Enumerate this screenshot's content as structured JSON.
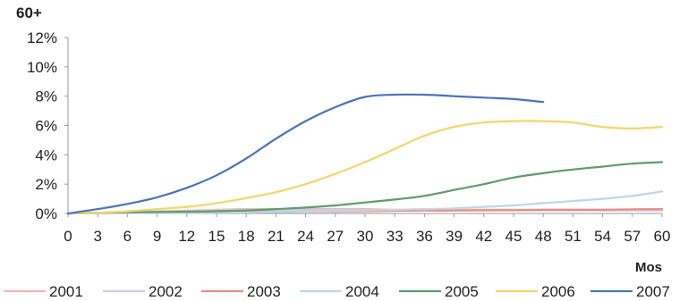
{
  "chart_data": {
    "type": "line",
    "title": "60+",
    "xlabel": "Mos",
    "ylabel": "",
    "xlim": [
      0,
      60
    ],
    "ylim": [
      0,
      12
    ],
    "x_ticks": [
      "0",
      "3",
      "6",
      "9",
      "12",
      "15",
      "18",
      "21",
      "24",
      "27",
      "30",
      "33",
      "36",
      "39",
      "42",
      "45",
      "48",
      "51",
      "54",
      "57",
      "60"
    ],
    "y_ticks": [
      "0%",
      "2%",
      "4%",
      "6%",
      "8%",
      "10%",
      "12%"
    ],
    "grid": false,
    "legend_position": "bottom",
    "x": [
      0,
      3,
      6,
      9,
      12,
      15,
      18,
      21,
      24,
      27,
      30,
      33,
      36,
      39,
      42,
      45,
      48,
      51,
      54,
      57,
      60
    ],
    "series": [
      {
        "name": "2001",
        "color": "#f2b8b0",
        "values": [
          0,
          0.05,
          0.1,
          0.15,
          0.2,
          0.25,
          0.3,
          0.3,
          0.3,
          0.3,
          0.3,
          0.25,
          0.25,
          0.25,
          0.25,
          0.25,
          0.25,
          0.25,
          0.25,
          0.25,
          0.25
        ]
      },
      {
        "name": "2002",
        "color": "#c6cfe6",
        "values": [
          0,
          0.05,
          0.1,
          0.12,
          0.15,
          0.18,
          0.2,
          0.22,
          0.22,
          0.22,
          0.22,
          0.2,
          0.2,
          0.2,
          0.2,
          0.2,
          0.2,
          0.2,
          0.2,
          0.2,
          0.2
        ]
      },
      {
        "name": "2003",
        "color": "#ec8d7f",
        "values": [
          0,
          0.02,
          0.04,
          0.05,
          0.06,
          0.08,
          0.1,
          0.1,
          0.12,
          0.12,
          0.15,
          0.18,
          0.2,
          0.2,
          0.22,
          0.22,
          0.25,
          0.25,
          0.25,
          0.28,
          0.3
        ]
      },
      {
        "name": "2004",
        "color": "#bfd6e8",
        "values": [
          0,
          0.02,
          0.03,
          0.04,
          0.05,
          0.06,
          0.08,
          0.1,
          0.12,
          0.15,
          0.2,
          0.25,
          0.3,
          0.35,
          0.45,
          0.55,
          0.7,
          0.85,
          1.0,
          1.2,
          1.5
        ]
      },
      {
        "name": "2005",
        "color": "#5e9c6e",
        "values": [
          0,
          0.05,
          0.08,
          0.1,
          0.12,
          0.15,
          0.2,
          0.3,
          0.4,
          0.55,
          0.75,
          0.95,
          1.2,
          1.6,
          2.0,
          2.45,
          2.75,
          3.0,
          3.2,
          3.4,
          3.5
        ]
      },
      {
        "name": "2006",
        "color": "#f5d567",
        "values": [
          0,
          0.05,
          0.15,
          0.3,
          0.45,
          0.7,
          1.05,
          1.45,
          2.0,
          2.7,
          3.5,
          4.4,
          5.3,
          5.9,
          6.2,
          6.3,
          6.3,
          6.2,
          5.9,
          5.8,
          5.9
        ]
      },
      {
        "name": "2007",
        "color": "#4a74b8",
        "values": [
          0,
          0.3,
          0.65,
          1.1,
          1.75,
          2.6,
          3.75,
          5.1,
          6.3,
          7.25,
          7.95,
          8.1,
          8.1,
          8.0,
          7.9,
          7.8,
          7.6,
          null,
          null,
          null,
          null
        ]
      }
    ]
  }
}
